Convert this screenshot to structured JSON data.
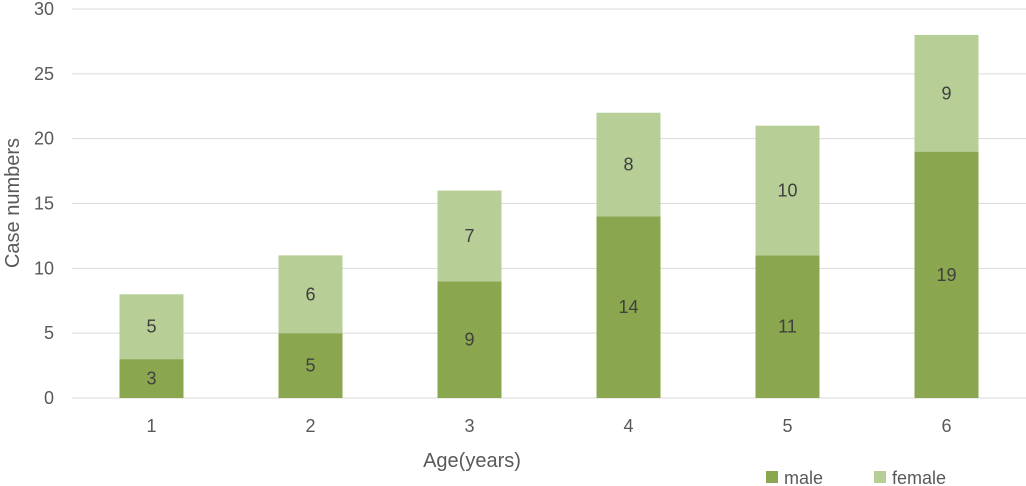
{
  "chart_data": {
    "type": "bar",
    "stacked": true,
    "title": "",
    "xlabel": "Age(years)",
    "ylabel": "Case numbers",
    "categories": [
      "1",
      "2",
      "3",
      "4",
      "5",
      "6"
    ],
    "series": [
      {
        "name": "male",
        "values": [
          3,
          5,
          9,
          14,
          11,
          19
        ],
        "color": "#8aa64e"
      },
      {
        "name": "female",
        "values": [
          5,
          6,
          7,
          8,
          10,
          9
        ],
        "color": "#b7cf97"
      }
    ],
    "ylim": [
      0,
      30
    ],
    "yticks": [
      0,
      5,
      10,
      15,
      20,
      25,
      30
    ],
    "grid": true,
    "legend_position": "bottom-right",
    "gridline_color": "#d9d9d9"
  }
}
